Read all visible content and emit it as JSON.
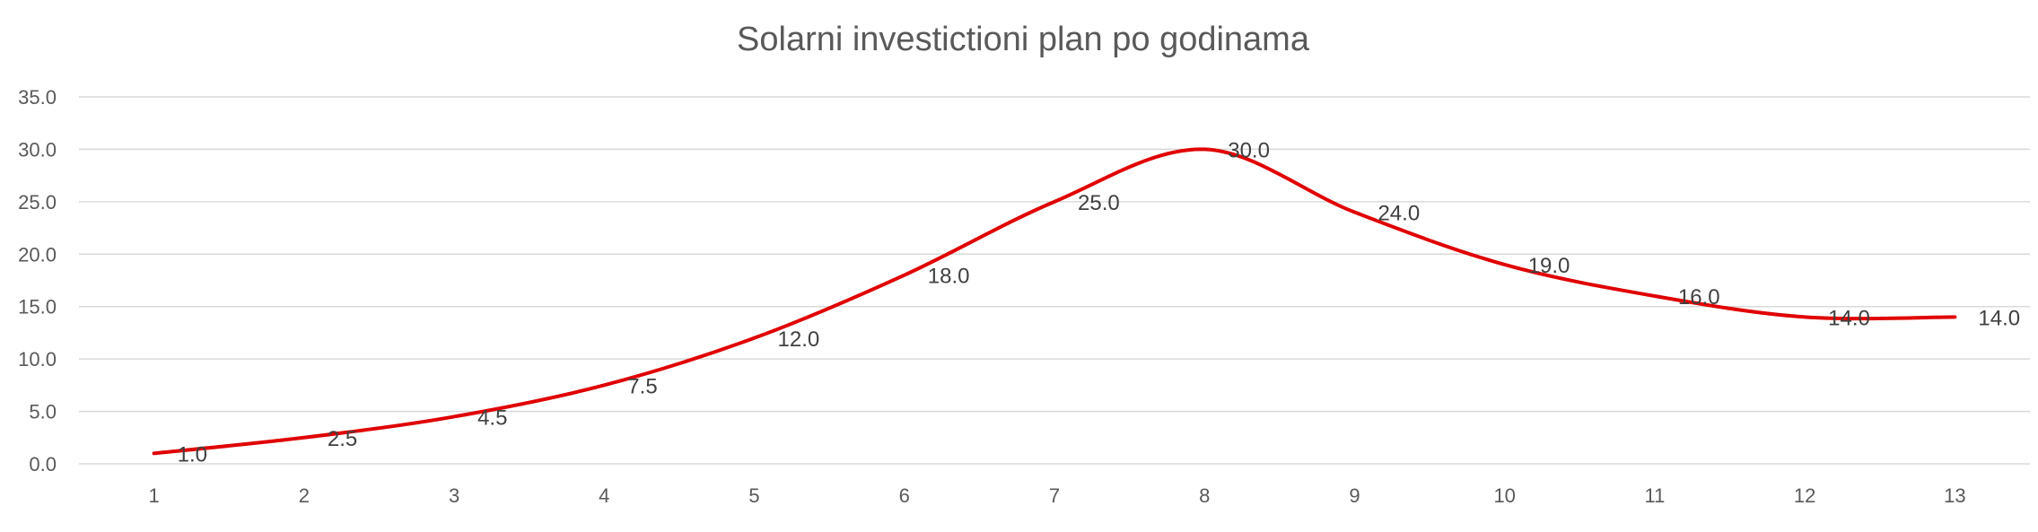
{
  "chart_data": {
    "type": "line",
    "title": "Solarni investictioni plan po godinama",
    "xlabel": "",
    "ylabel": "",
    "categories": [
      "1",
      "2",
      "3",
      "4",
      "5",
      "6",
      "7",
      "8",
      "9",
      "10",
      "11",
      "12",
      "13"
    ],
    "series": [
      {
        "values": [
          1.0,
          2.5,
          4.5,
          7.5,
          12.0,
          18.0,
          25.0,
          30.0,
          24.0,
          19.0,
          16.0,
          14.0,
          14.0
        ],
        "labels": [
          "1.0",
          "2.5",
          "4.5",
          "7.5",
          "12.0",
          "18.0",
          "25.0",
          "30.0",
          "24.0",
          "19.0",
          "16.0",
          "14.0",
          "14.0"
        ],
        "color": "#e00000"
      }
    ],
    "ylim": [
      0,
      35
    ],
    "yticks": [
      "0.0",
      "5.0",
      "10.0",
      "15.0",
      "20.0",
      "25.0",
      "30.0",
      "35.0"
    ],
    "grid": true,
    "smooth": true,
    "legend": "none"
  }
}
